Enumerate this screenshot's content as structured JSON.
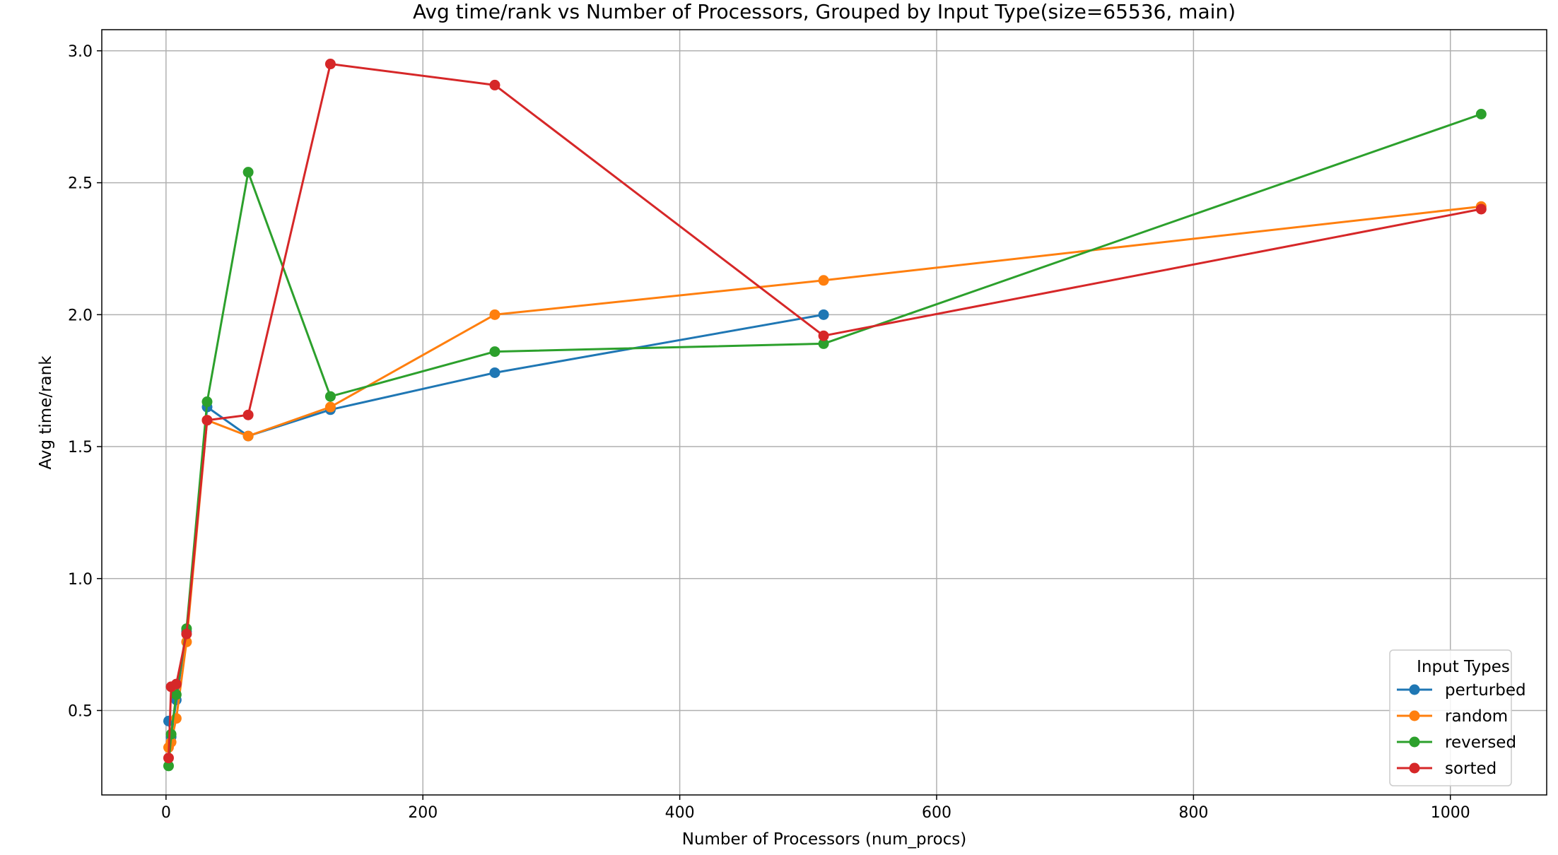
{
  "chart_data": {
    "type": "line",
    "title": "Avg time/rank vs Number of Processors, Grouped by Input Type(size=65536, main)",
    "xlabel": "Number of Processors (num_procs)",
    "ylabel": "Avg time/rank",
    "xlim": [
      -50,
      1075
    ],
    "ylim": [
      0.18,
      3.08
    ],
    "xticks": [
      0,
      200,
      400,
      600,
      800,
      1000
    ],
    "yticks": [
      0.5,
      1.0,
      1.5,
      2.0,
      2.5,
      3.0
    ],
    "xtick_labels": [
      "0",
      "200",
      "400",
      "600",
      "800",
      "1000"
    ],
    "ytick_labels": [
      "0.5",
      "1.0",
      "1.5",
      "2.0",
      "2.5",
      "3.0"
    ],
    "grid": true,
    "legend": {
      "title": "Input Types",
      "placement": "lower-right"
    },
    "series": [
      {
        "name": "perturbed",
        "color": "#1f77b4",
        "x": [
          2,
          4,
          8,
          16,
          32,
          64,
          128,
          256,
          512
        ],
        "y": [
          0.46,
          0.4,
          0.54,
          0.8,
          1.65,
          1.54,
          1.64,
          1.78,
          2.0
        ]
      },
      {
        "name": "random",
        "color": "#ff7f0e",
        "x": [
          2,
          4,
          8,
          16,
          32,
          64,
          128,
          256,
          512,
          1024
        ],
        "y": [
          0.36,
          0.38,
          0.47,
          0.76,
          1.6,
          1.54,
          1.65,
          2.0,
          2.13,
          2.41
        ]
      },
      {
        "name": "reversed",
        "color": "#2ca02c",
        "x": [
          2,
          4,
          8,
          16,
          32,
          64,
          128,
          256,
          512,
          1024
        ],
        "y": [
          0.29,
          0.41,
          0.56,
          0.81,
          1.67,
          2.54,
          1.69,
          1.86,
          1.89,
          2.76
        ]
      },
      {
        "name": "sorted",
        "color": "#d62728",
        "x": [
          2,
          4,
          8,
          16,
          32,
          64,
          128,
          256,
          512,
          1024
        ],
        "y": [
          0.32,
          0.59,
          0.6,
          0.79,
          1.6,
          1.62,
          2.95,
          2.87,
          1.92,
          2.4
        ]
      }
    ]
  }
}
